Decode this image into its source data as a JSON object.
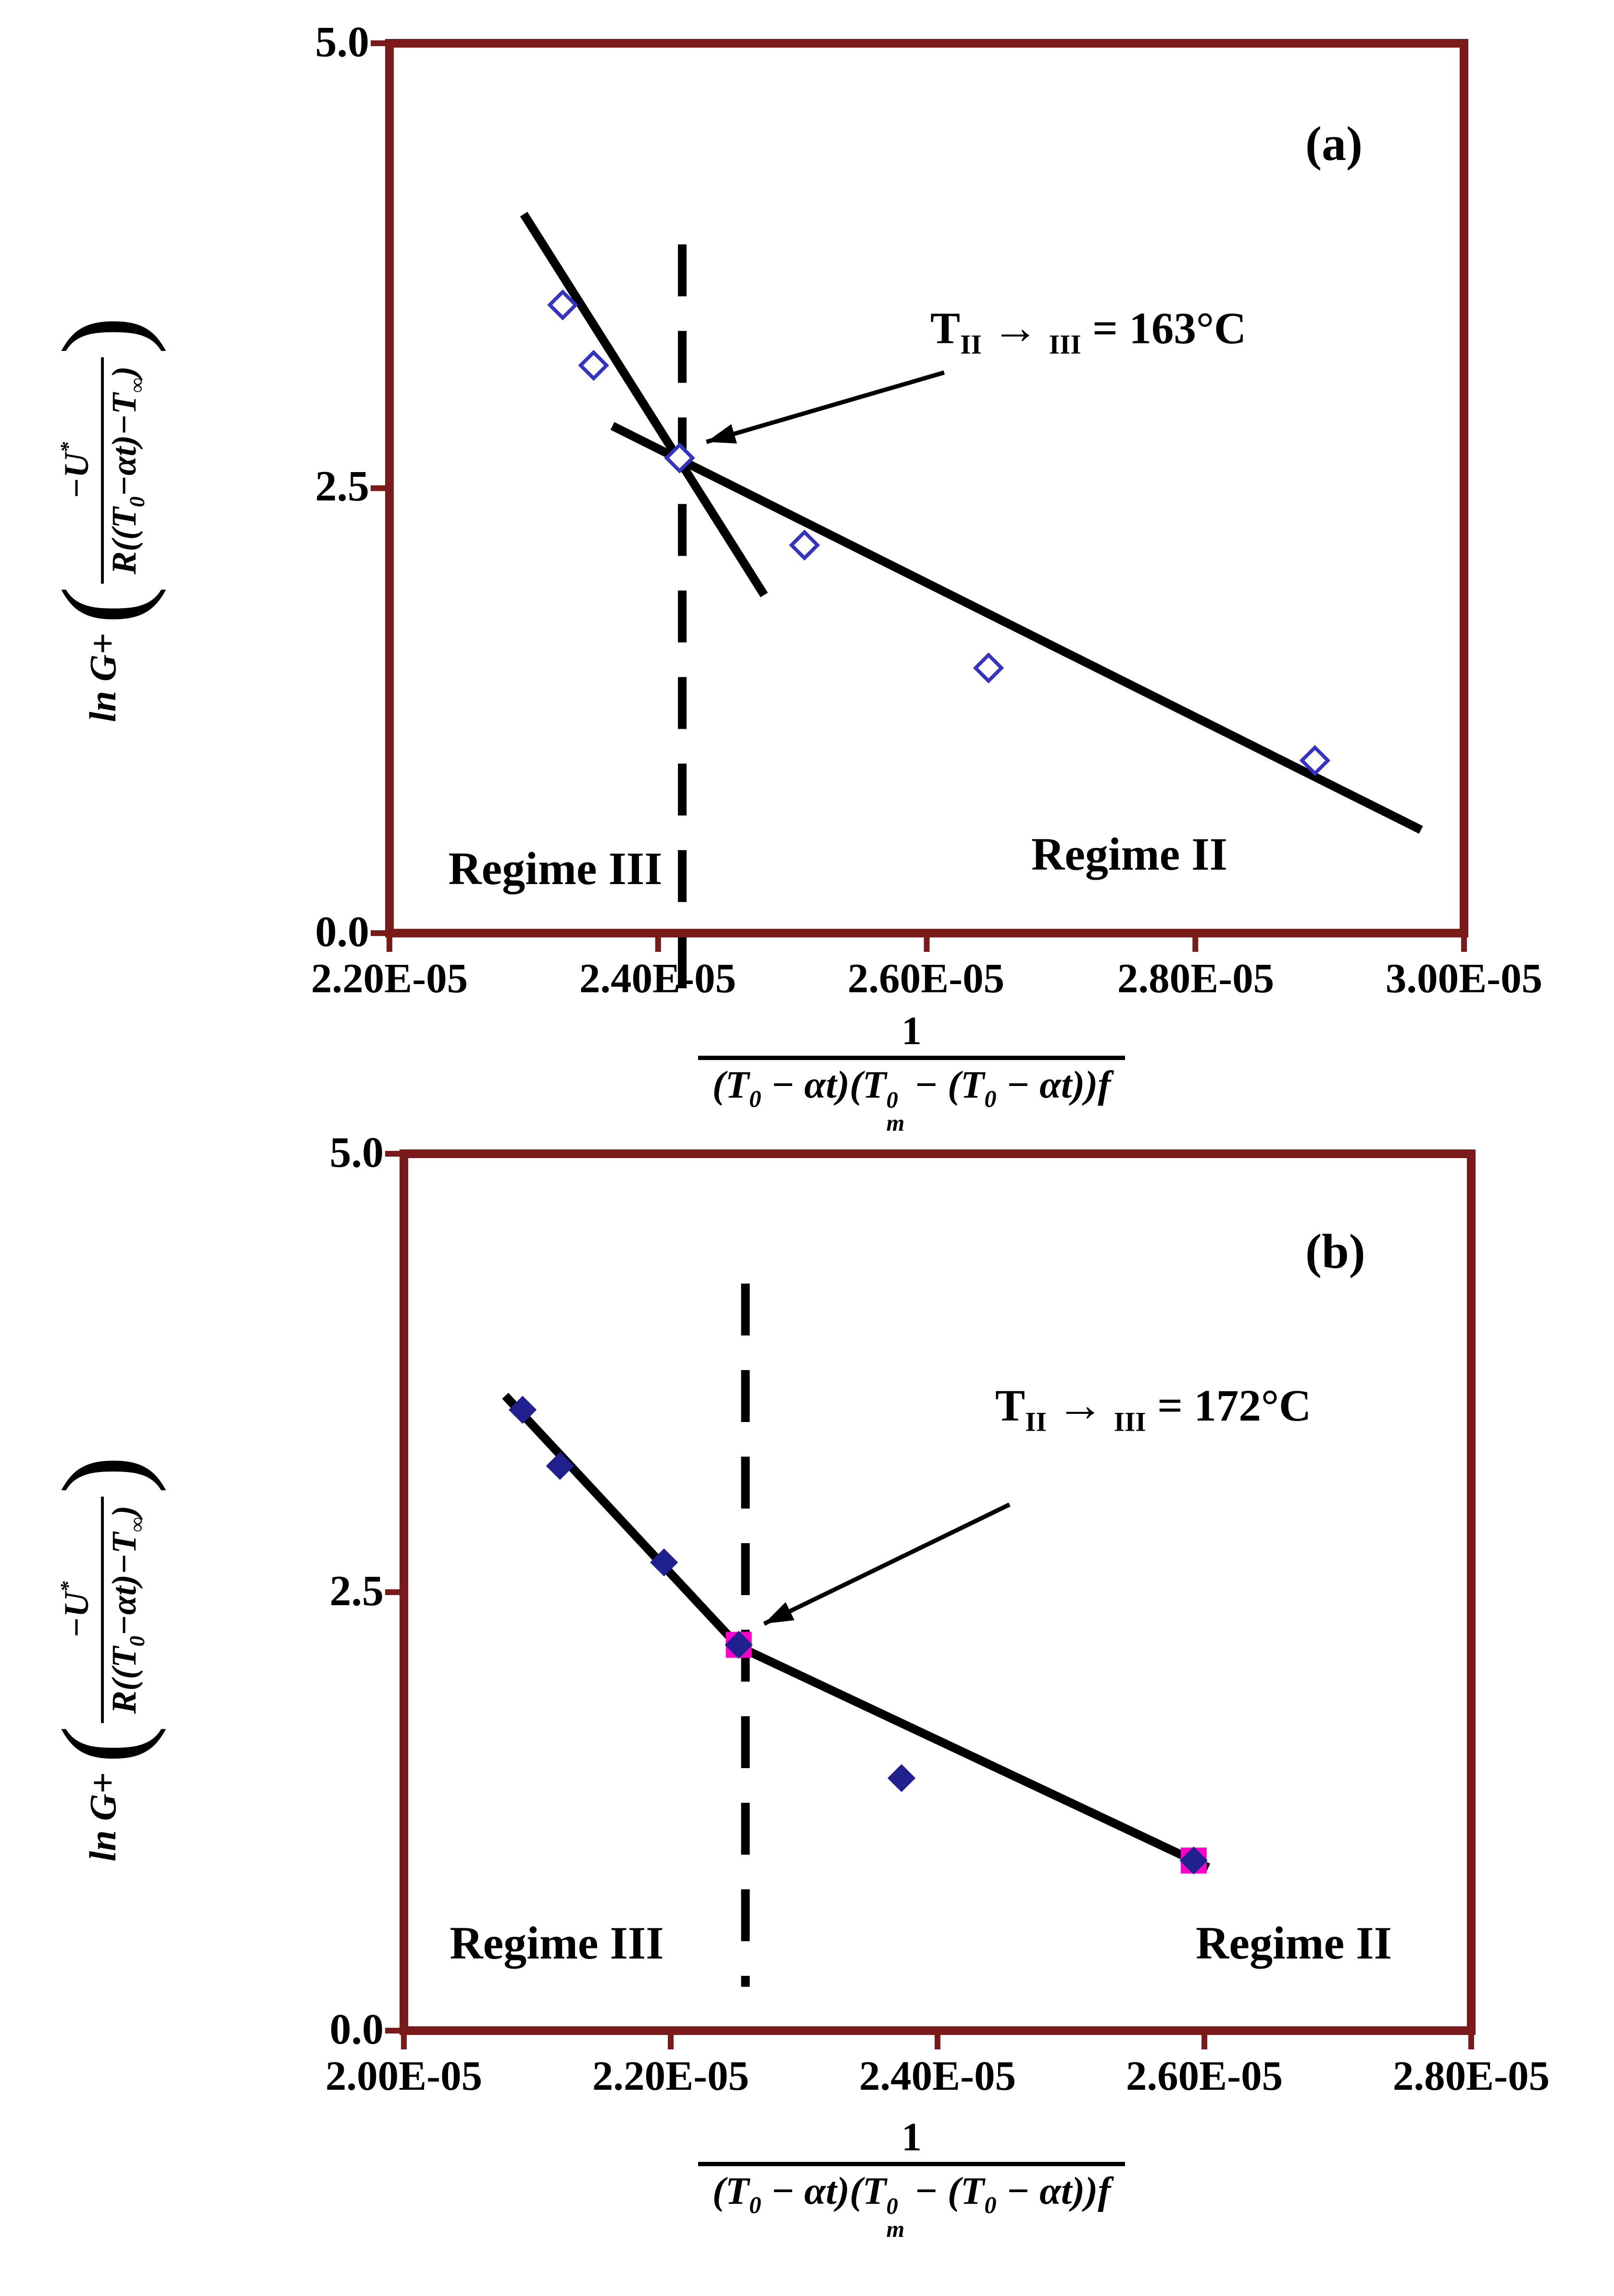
{
  "colors": {
    "frame": "#7a1a1a",
    "trend_line": "#000000",
    "open_marker": "#3434c0",
    "filled_marker": "#20208e",
    "square_marker": "#ff00cc"
  },
  "ylabel": {
    "prefix": "ln G+",
    "numerator": "−U",
    "numerator_sup": "*",
    "den_a": "R((T",
    "den_a_sub": "0",
    "den_b": "−αt)−T",
    "den_b_sub": "∞",
    "den_c": ")"
  },
  "xlabel": {
    "numerator": "1",
    "den_a": "(T",
    "den_a_sub": "0",
    "den_b": " − αt)(T",
    "den_stack_sup": "0",
    "den_stack_sub": "m",
    "den_c": " − (T",
    "den_c_sub": "0",
    "den_d": " − αt))f"
  },
  "chart_data": [
    {
      "type": "scatter",
      "panel_label": "(a)",
      "xlabel": "1 / ((T0 − αt)(Tm0 − (T0 − αt)) f)",
      "ylabel": "ln G + (−U* / R((T0 − αt) − T∞))",
      "xlim": [
        2.2e-05,
        3e-05
      ],
      "ylim": [
        0,
        5
      ],
      "xticks": [
        "2.20E-05",
        "2.40E-05",
        "2.60E-05",
        "2.80E-05",
        "3.00E-05"
      ],
      "yticks": [
        "0.0",
        "2.5",
        "5.0"
      ],
      "marker": "open-diamond",
      "points": [
        [
          2.329e-05,
          3.53
        ],
        [
          2.352e-05,
          3.19
        ],
        [
          2.416e-05,
          2.67
        ],
        [
          2.509e-05,
          2.18
        ],
        [
          2.646e-05,
          1.49
        ],
        [
          2.889e-05,
          0.97
        ]
      ],
      "squares": [],
      "trend_lines": [
        [
          2.3e-05,
          4.04,
          2.479e-05,
          1.9
        ],
        [
          2.366e-05,
          2.85,
          2.968e-05,
          0.58
        ]
      ],
      "dashed_line": {
        "x": 2.418e-05,
        "y_top": 3.87,
        "y_bottom": -0.31
      },
      "arrow": {
        "x1": 2.613e-05,
        "y1": 3.15,
        "x2": 2.436e-05,
        "y2": 2.76
      },
      "annotation": {
        "t": "T",
        "from": "II",
        "arrow": "→",
        "to": "III",
        "rest": " = 163°C"
      },
      "regime_labels": [
        {
          "text": "Regime III"
        },
        {
          "text": "Regime II"
        }
      ]
    },
    {
      "type": "scatter",
      "panel_label": "(b)",
      "xlabel": "1 / ((T0 − αt)(Tm0 − (T0 − αt)) f)",
      "ylabel": "ln G + (−U* / R((T0 − αt) − T∞))",
      "xlim": [
        2e-05,
        2.8e-05
      ],
      "ylim": [
        0,
        5
      ],
      "xticks": [
        "2.00E-05",
        "2.20E-05",
        "2.40E-05",
        "2.60E-05",
        "2.80E-05"
      ],
      "yticks": [
        "0.0",
        "2.5",
        "5.0"
      ],
      "marker": "filled-diamond",
      "points": [
        [
          2.089e-05,
          3.54
        ],
        [
          2.117e-05,
          3.22
        ],
        [
          2.195e-05,
          2.67
        ],
        [
          2.251e-05,
          2.2
        ],
        [
          2.373e-05,
          1.44
        ],
        [
          2.592e-05,
          0.97
        ]
      ],
      "squares": [
        [
          2.251e-05,
          2.2
        ],
        [
          2.592e-05,
          0.97
        ]
      ],
      "trend_lines": [
        [
          2.076e-05,
          3.62,
          2.251e-05,
          2.19
        ],
        [
          2.251e-05,
          2.19,
          2.603e-05,
          0.93
        ]
      ],
      "dashed_line": {
        "x": 2.256e-05,
        "y_top": 4.26,
        "y_bottom": 0.25
      },
      "arrow": {
        "x1": 2.454e-05,
        "y1": 3.0,
        "x2": 2.27e-05,
        "y2": 2.32
      },
      "annotation": {
        "t": "T",
        "from": "II",
        "arrow": "→",
        "to": "III",
        "rest": " = 172°C"
      },
      "regime_labels": [
        {
          "text": "Regime III"
        },
        {
          "text": "Regime II"
        }
      ]
    }
  ]
}
